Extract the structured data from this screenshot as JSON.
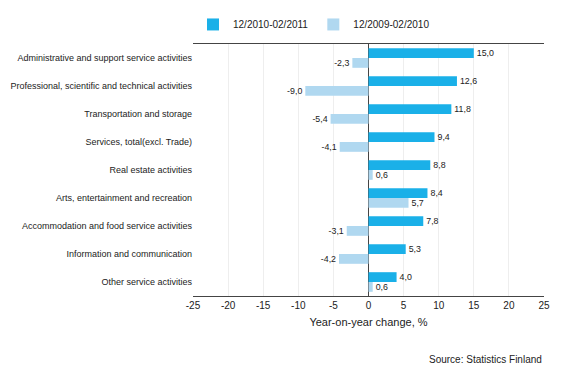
{
  "chart_data": {
    "type": "bar",
    "orientation": "horizontal",
    "categories": [
      "Administrative and support service activities",
      "Professional, scientific and technical activities",
      "Transportation and storage",
      "Services, total(excl. Trade)",
      "Real estate activities",
      "Arts, entertainment and recreation",
      "Accommodation and food service activities",
      "Information and communication",
      "Other service activities"
    ],
    "series": [
      {
        "name": "12/2010-02/2011",
        "color": "#1ab0e8",
        "values": [
          15.0,
          12.6,
          11.8,
          9.4,
          8.8,
          8.4,
          7.8,
          5.3,
          4.0
        ],
        "value_labels": [
          "15,0",
          "12,6",
          "11,8",
          "9,4",
          "8,8",
          "8,4",
          "7,8",
          "5,3",
          "4,0"
        ]
      },
      {
        "name": "12/2009-02/2010",
        "color": "#b0d8f0",
        "values": [
          -2.3,
          -9.0,
          -5.4,
          -4.1,
          0.6,
          5.7,
          -3.1,
          -4.2,
          0.6
        ],
        "value_labels": [
          "-2,3",
          "-9,0",
          "-5,4",
          "-4,1",
          "0,6",
          "5,7",
          "-3,1",
          "-4,2",
          "0,6"
        ]
      }
    ],
    "xlim": [
      -25,
      25
    ],
    "xticks": [
      -25,
      -20,
      -15,
      -10,
      -5,
      0,
      5,
      10,
      15,
      20,
      25
    ],
    "xlabel": "Year-on-year change, %",
    "source": "Source: Statistics Finland",
    "data_labels": true,
    "grid": true,
    "legend": "top"
  }
}
